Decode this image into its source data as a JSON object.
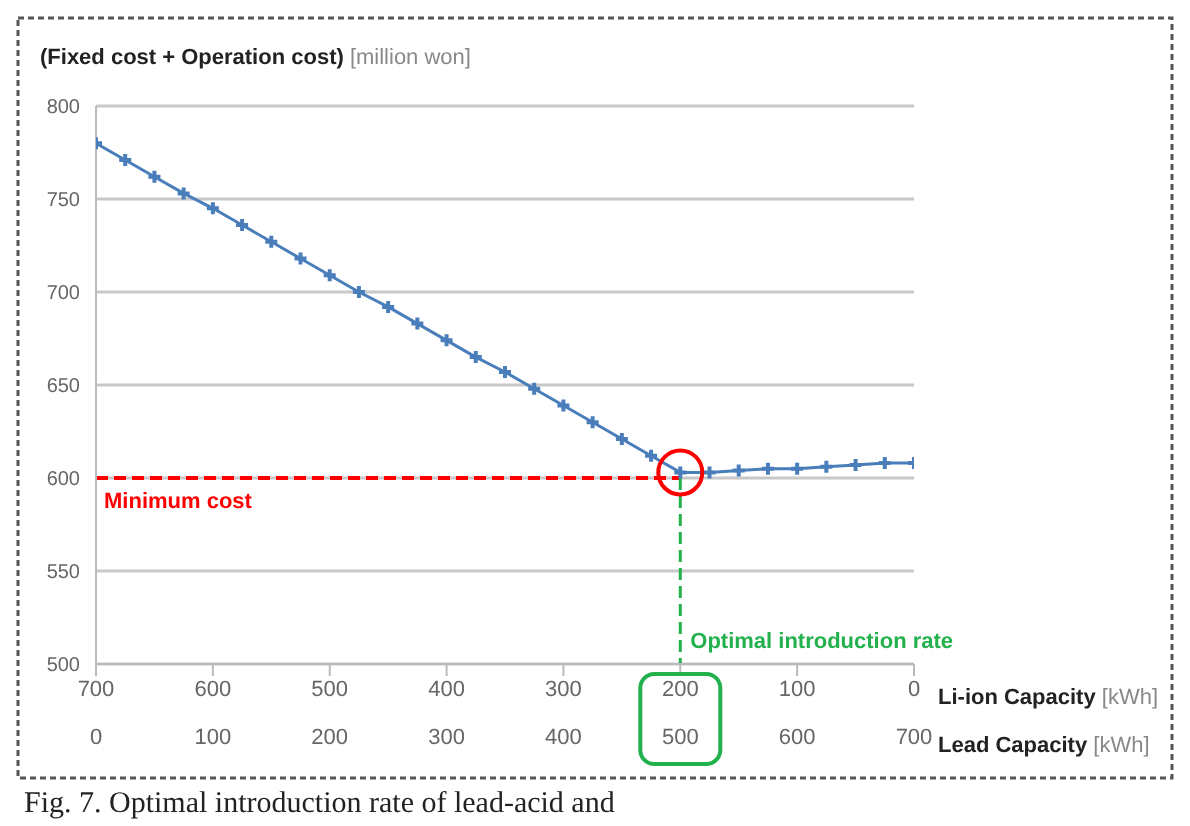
{
  "chart_data": {
    "type": "line",
    "ylabel": "(Fixed cost + Operation cost) [million won]",
    "xlabel": "Lead Capacity [kWh]",
    "x2label": "Li-ion Capacity [kWh]",
    "x": [
      0,
      25,
      50,
      75,
      100,
      125,
      150,
      175,
      200,
      225,
      250,
      275,
      300,
      325,
      350,
      375,
      400,
      425,
      450,
      475,
      500,
      525,
      550,
      575,
      600,
      625,
      650,
      675,
      700
    ],
    "series": [
      {
        "color": "#4a7ebb",
        "values": [
          780,
          771,
          762,
          753,
          745,
          736,
          727,
          718,
          709,
          700,
          692,
          683,
          674,
          665,
          657,
          648,
          639,
          630,
          621,
          612,
          603,
          603,
          604,
          605,
          605,
          606,
          607,
          608,
          608
        ]
      }
    ],
    "xlim": [
      0,
      700
    ],
    "xticks": [
      0,
      100,
      200,
      300,
      400,
      500,
      600,
      700
    ],
    "x2lim": [
      700,
      0
    ],
    "x2ticks": [
      700,
      600,
      500,
      400,
      300,
      200,
      100,
      0
    ],
    "ylim": [
      500,
      800
    ],
    "yticks": [
      500,
      550,
      600,
      650,
      700,
      750,
      800
    ],
    "grid": "y",
    "marker": "cross",
    "line_style": "solid",
    "ref_lines": [
      {
        "axis": "y",
        "value": 600,
        "label": "Minimum cost",
        "color": "#ff0000",
        "line_style": "dashed"
      },
      {
        "axis": "x",
        "value": 500,
        "label": "Optimal introduction rate",
        "color": "#22b14c",
        "line_style": "dashed"
      }
    ],
    "annotations": [
      "Fig. 7. Optimal introduction rate of lead-acid and"
    ]
  }
}
